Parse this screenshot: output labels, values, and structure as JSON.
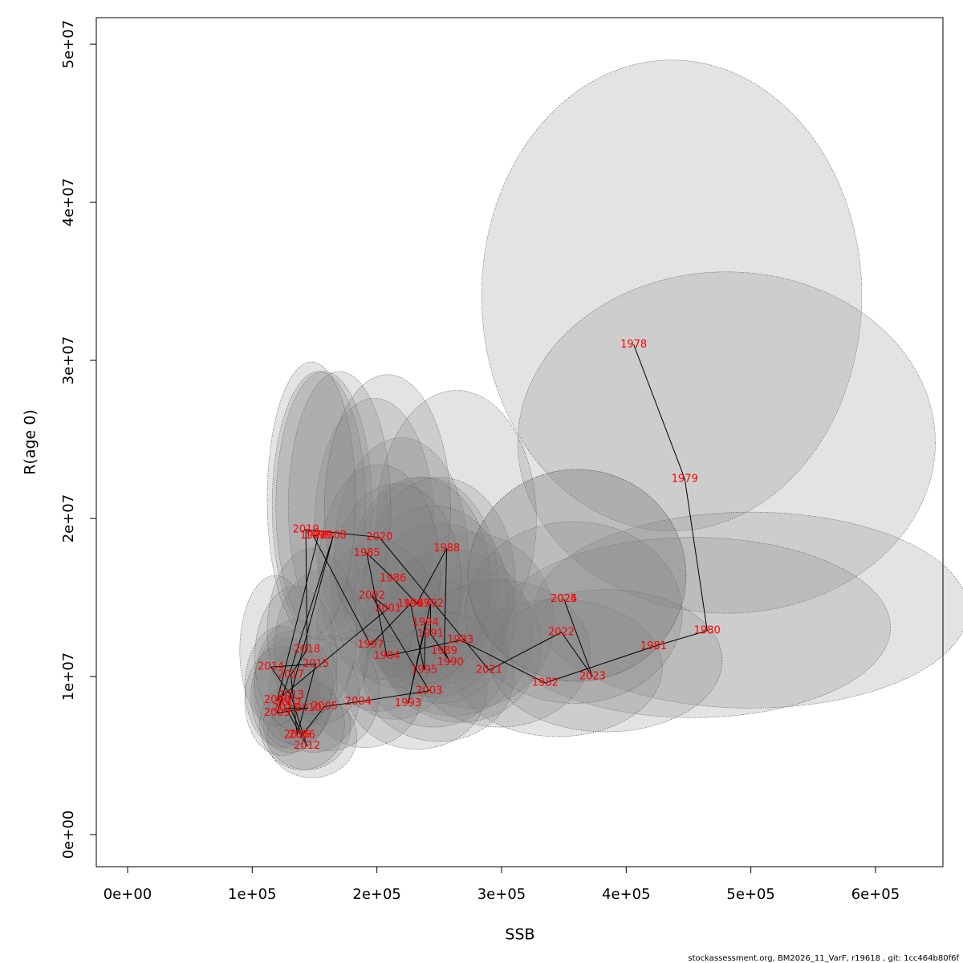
{
  "chart_data": {
    "type": "scatter",
    "x_label": "SSB",
    "y_label": "R(age 0)",
    "footer": "stockassessment.org, BM2026_11_VarF, r19618 , git: 1cc464b80f6f",
    "labels": [
      "1978",
      "1979",
      "1980",
      "1981",
      "1982",
      "1983",
      "1984",
      "1985",
      "1986",
      "1987",
      "1988",
      "1989",
      "1990",
      "1991",
      "1992",
      "1993",
      "1994",
      "1995",
      "1996",
      "1997",
      "1998",
      "1999",
      "2000",
      "2001",
      "2002",
      "2003",
      "2004",
      "2005",
      "2006",
      "2007",
      "2008",
      "2009",
      "2010",
      "2011",
      "2012",
      "2013",
      "2014",
      "2015",
      "2016",
      "2017",
      "2018",
      "2019",
      "2020",
      "2021",
      "2022",
      "2023",
      "2024",
      "2025"
    ],
    "x": [
      406000,
      447000,
      465000,
      422000,
      335000,
      267000,
      208000,
      192000,
      213000,
      232000,
      256000,
      254000,
      259000,
      243000,
      243000,
      225000,
      239000,
      238000,
      227000,
      195000,
      149000,
      153000,
      120000,
      209000,
      196000,
      242000,
      185000,
      158000,
      140000,
      129000,
      165000,
      120000,
      145000,
      127000,
      144000,
      131000,
      115000,
      151000,
      136000,
      131000,
      144000,
      143000,
      202000,
      290000,
      348000,
      373000,
      350000,
      350000
    ],
    "y": [
      31000000,
      22500000,
      12900000,
      11900000,
      9600000,
      12300000,
      11300000,
      17800000,
      16200000,
      14600000,
      18100000,
      11600000,
      10900000,
      12700000,
      14600000,
      8300000,
      13400000,
      10400000,
      14600000,
      12000000,
      18900000,
      18900000,
      8500000,
      14300000,
      15100000,
      9100000,
      8400000,
      8100000,
      6300000,
      8300000,
      18900000,
      7700000,
      8000000,
      8000000,
      5600000,
      8800000,
      10600000,
      10800000,
      6300000,
      10100000,
      11700000,
      19300000,
      18800000,
      10400000,
      12800000,
      10000000,
      14900000,
      14900000
    ],
    "x_low": [
      284000,
      313000,
      326000,
      295000,
      261000,
      208000,
      162000,
      150000,
      166000,
      181000,
      200000,
      198000,
      202000,
      190000,
      190000,
      176000,
      186000,
      186000,
      177000,
      152000,
      116000,
      119000,
      94000,
      163000,
      153000,
      189000,
      144000,
      123000,
      109000,
      101000,
      129000,
      94000,
      113000,
      99000,
      112000,
      102000,
      90000,
      118000,
      106000,
      102000,
      112000,
      112000,
      158000,
      226000,
      271000,
      291000,
      273000,
      273000
    ],
    "x_high": [
      589000,
      648000,
      674000,
      612000,
      429000,
      342000,
      266000,
      246000,
      273000,
      297000,
      328000,
      325000,
      332000,
      311000,
      311000,
      288000,
      306000,
      305000,
      291000,
      250000,
      191000,
      196000,
      154000,
      268000,
      251000,
      310000,
      237000,
      202000,
      179000,
      165000,
      211000,
      154000,
      186000,
      163000,
      184000,
      168000,
      147000,
      193000,
      174000,
      168000,
      184000,
      183000,
      259000,
      371000,
      445000,
      477000,
      448000,
      448000
    ],
    "y_low": [
      19200000,
      14000000,
      8000000,
      7400000,
      6200000,
      8000000,
      7300000,
      11600000,
      10500000,
      9500000,
      11800000,
      7500000,
      7100000,
      8300000,
      9500000,
      5400000,
      8700000,
      6800000,
      9500000,
      7800000,
      12300000,
      12300000,
      5500000,
      9300000,
      9800000,
      5900000,
      5500000,
      5300000,
      4100000,
      5400000,
      12300000,
      5000000,
      5200000,
      5200000,
      3600000,
      5700000,
      6900000,
      7000000,
      4100000,
      6600000,
      7600000,
      12500000,
      12200000,
      6800000,
      8300000,
      6500000,
      9700000,
      9700000
    ],
    "y_high": [
      49000000,
      35600000,
      20400000,
      18800000,
      14900000,
      19100000,
      17500000,
      27600000,
      25100000,
      22600000,
      28100000,
      18000000,
      16900000,
      19700000,
      22600000,
      12900000,
      20800000,
      16100000,
      22600000,
      18600000,
      29300000,
      29300000,
      13200000,
      22200000,
      23400000,
      14100000,
      13000000,
      12600000,
      9800000,
      12900000,
      29300000,
      11900000,
      12400000,
      12400000,
      8700000,
      13600000,
      16400000,
      16700000,
      9800000,
      15700000,
      18100000,
      29900000,
      29100000,
      16100000,
      19800000,
      15500000,
      23100000,
      23100000
    ],
    "label_color": "#ff0000",
    "line_color": "#000000",
    "ellipse_color": "#808080",
    "xlim": [
      -25100,
      654100
    ],
    "ylim": [
      -2030000,
      51680000
    ],
    "xticks": [
      {
        "value": 0,
        "label": "0e+00"
      },
      {
        "value": 100000,
        "label": "1e+05"
      },
      {
        "value": 200000,
        "label": "2e+05"
      },
      {
        "value": 300000,
        "label": "3e+05"
      },
      {
        "value": 400000,
        "label": "4e+05"
      },
      {
        "value": 500000,
        "label": "5e+05"
      },
      {
        "value": 600000,
        "label": "6e+05"
      }
    ],
    "yticks": [
      {
        "value": 0,
        "label": "0e+00"
      },
      {
        "value": 10000000,
        "label": "1e+07"
      },
      {
        "value": 20000000,
        "label": "2e+07"
      },
      {
        "value": 30000000,
        "label": "3e+07"
      },
      {
        "value": 40000000,
        "label": "4e+07"
      },
      {
        "value": 50000000,
        "label": "5e+07"
      }
    ]
  }
}
